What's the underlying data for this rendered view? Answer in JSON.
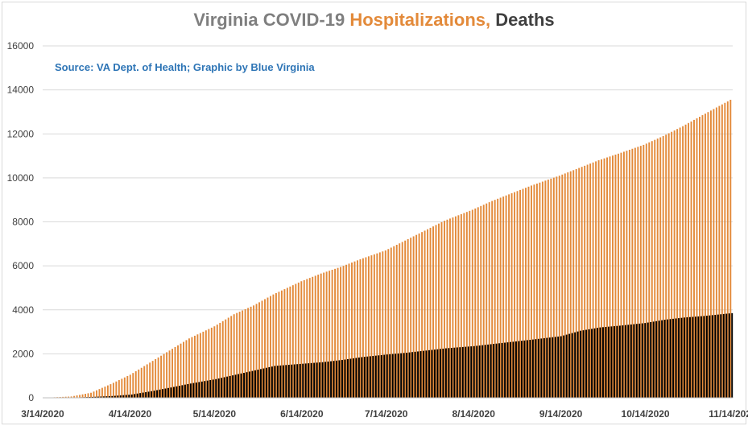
{
  "chart_data": {
    "type": "bar",
    "title_parts": [
      {
        "text": "Virginia COVID-19 ",
        "color": "#7f7f7f"
      },
      {
        "text": "Hospitalizations,",
        "color": "#e38a3a"
      },
      {
        "text": " Deaths",
        "color": "#404040"
      }
    ],
    "source": "Source: VA Dept. of Health; Graphic by Blue Virginia",
    "xlabel": "",
    "ylabel": "",
    "ylim": [
      0,
      16000
    ],
    "yticks": [
      0,
      2000,
      4000,
      6000,
      8000,
      10000,
      12000,
      14000,
      16000
    ],
    "xtick_labels": [
      "3/14/2020",
      "4/14/2020",
      "5/14/2020",
      "6/14/2020",
      "7/14/2020",
      "8/14/2020",
      "9/14/2020",
      "10/14/2020",
      "11/14/2020"
    ],
    "grid": true,
    "legend": "none",
    "date_range": [
      "3/14/2020",
      "11/14/2020"
    ],
    "series": [
      {
        "name": "Hospitalizations",
        "color": "#e38a3a",
        "points": [
          [
            "3/14/2020",
            0
          ],
          [
            "3/24/2020",
            60
          ],
          [
            "3/31/2020",
            230
          ],
          [
            "4/7/2020",
            620
          ],
          [
            "4/14/2020",
            1050
          ],
          [
            "4/21/2020",
            1600
          ],
          [
            "4/28/2020",
            2150
          ],
          [
            "5/5/2020",
            2700
          ],
          [
            "5/14/2020",
            3250
          ],
          [
            "5/21/2020",
            3800
          ],
          [
            "5/28/2020",
            4200
          ],
          [
            "6/4/2020",
            4700
          ],
          [
            "6/14/2020",
            5300
          ],
          [
            "6/21/2020",
            5650
          ],
          [
            "6/28/2020",
            5950
          ],
          [
            "7/5/2020",
            6300
          ],
          [
            "7/14/2020",
            6700
          ],
          [
            "7/21/2020",
            7150
          ],
          [
            "7/28/2020",
            7600
          ],
          [
            "8/4/2020",
            8050
          ],
          [
            "8/14/2020",
            8550
          ],
          [
            "8/21/2020",
            8950
          ],
          [
            "8/28/2020",
            9300
          ],
          [
            "9/4/2020",
            9650
          ],
          [
            "9/14/2020",
            10100
          ],
          [
            "9/21/2020",
            10450
          ],
          [
            "9/28/2020",
            10800
          ],
          [
            "10/5/2020",
            11100
          ],
          [
            "10/14/2020",
            11500
          ],
          [
            "10/21/2020",
            11900
          ],
          [
            "10/28/2020",
            12350
          ],
          [
            "11/4/2020",
            12850
          ],
          [
            "11/14/2020",
            13550
          ]
        ]
      },
      {
        "name": "Deaths",
        "color": "#000000",
        "points": [
          [
            "3/14/2020",
            0
          ],
          [
            "3/24/2020",
            10
          ],
          [
            "3/31/2020",
            40
          ],
          [
            "4/7/2020",
            80
          ],
          [
            "4/14/2020",
            150
          ],
          [
            "4/21/2020",
            300
          ],
          [
            "4/28/2020",
            470
          ],
          [
            "5/5/2020",
            650
          ],
          [
            "5/14/2020",
            850
          ],
          [
            "5/21/2020",
            1050
          ],
          [
            "5/28/2020",
            1250
          ],
          [
            "6/4/2020",
            1450
          ],
          [
            "6/14/2020",
            1550
          ],
          [
            "6/21/2020",
            1620
          ],
          [
            "6/28/2020",
            1720
          ],
          [
            "7/5/2020",
            1850
          ],
          [
            "7/14/2020",
            1970
          ],
          [
            "7/21/2020",
            2050
          ],
          [
            "7/28/2020",
            2150
          ],
          [
            "8/4/2020",
            2250
          ],
          [
            "8/14/2020",
            2350
          ],
          [
            "8/21/2020",
            2450
          ],
          [
            "8/28/2020",
            2550
          ],
          [
            "9/4/2020",
            2650
          ],
          [
            "9/14/2020",
            2800
          ],
          [
            "9/21/2020",
            3050
          ],
          [
            "9/28/2020",
            3200
          ],
          [
            "10/5/2020",
            3280
          ],
          [
            "10/14/2020",
            3400
          ],
          [
            "10/21/2020",
            3550
          ],
          [
            "10/28/2020",
            3650
          ],
          [
            "11/4/2020",
            3720
          ],
          [
            "11/14/2020",
            3850
          ]
        ]
      }
    ]
  }
}
